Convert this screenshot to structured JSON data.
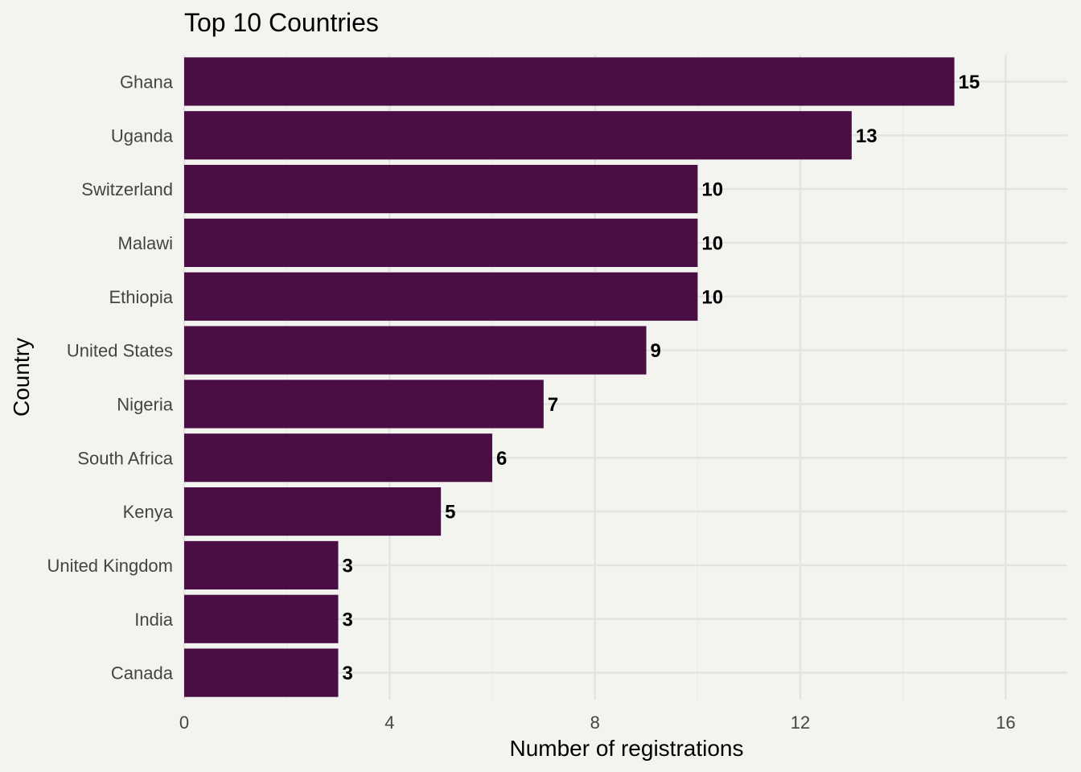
{
  "chart_data": {
    "type": "bar",
    "orientation": "horizontal",
    "title": "Top 10 Countries",
    "xlabel": "Number of registrations",
    "ylabel": "Country",
    "categories": [
      "Ghana",
      "Uganda",
      "Switzerland",
      "Malawi",
      "Ethiopia",
      "United States",
      "Nigeria",
      "South Africa",
      "Kenya",
      "United Kingdom",
      "India",
      "Canada"
    ],
    "values": [
      15,
      13,
      10,
      10,
      10,
      9,
      7,
      6,
      5,
      3,
      3,
      3
    ],
    "data_labels": [
      "15",
      "13",
      "10",
      "10",
      "10",
      "9",
      "7",
      "6",
      "5",
      "3",
      "3",
      "3"
    ],
    "xlim": [
      0,
      17.2
    ],
    "x_ticks": [
      0,
      4,
      8,
      12,
      16
    ],
    "x_tick_labels": [
      "0",
      "4",
      "8",
      "12",
      "16"
    ],
    "grid": true,
    "legend": "none",
    "colors": {
      "bar": "#4a0e45",
      "background": "#f3f3ef"
    }
  }
}
